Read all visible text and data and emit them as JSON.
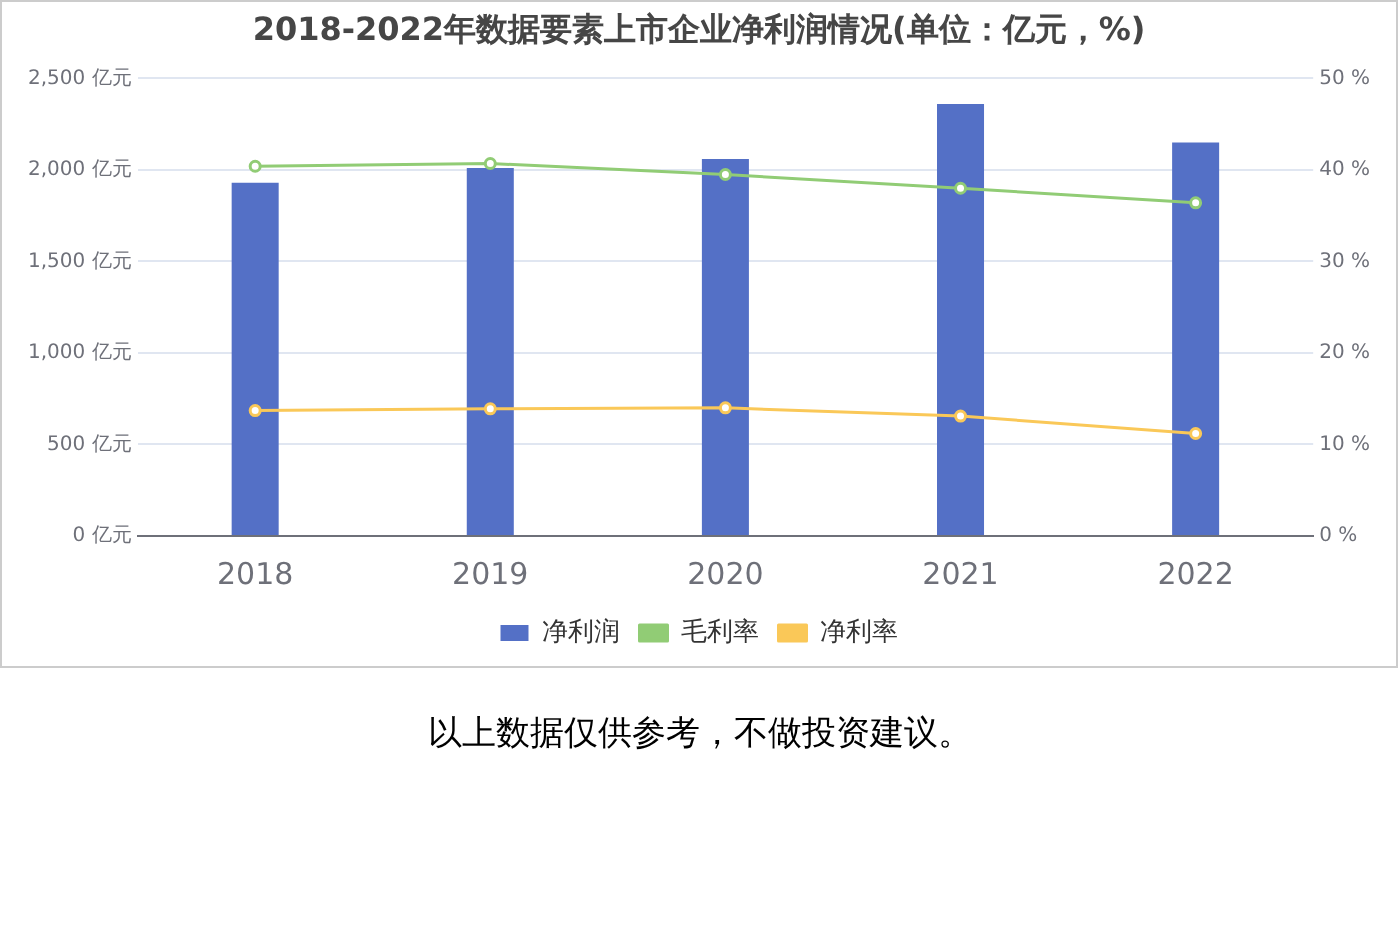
{
  "chart_data": {
    "type": "bar",
    "title": "2018-2022年数据要素上市企业净利润情况(单位：亿元，%)",
    "categories": [
      "2018",
      "2019",
      "2020",
      "2021",
      "2022"
    ],
    "series": [
      {
        "name": "净利润",
        "color": "#5470c6",
        "values": [
          1930,
          2010,
          2060,
          2360,
          2150
        ]
      },
      {
        "name": "毛利率",
        "type": "line",
        "axis": "y2",
        "color": "#91cc75",
        "values": [
          40.4,
          40.7,
          39.5,
          38.0,
          36.4
        ]
      },
      {
        "name": "净利率",
        "type": "line",
        "axis": "y2",
        "color": "#fac858",
        "values": [
          13.7,
          13.9,
          14.0,
          13.1,
          11.2
        ]
      }
    ],
    "ylim": [
      0,
      2500
    ],
    "yticks": [
      {
        "value": 0,
        "label": "0 亿元"
      },
      {
        "value": 500,
        "label": "500 亿元"
      },
      {
        "value": 1000,
        "label": "1,000 亿元"
      },
      {
        "value": 1500,
        "label": "1,500 亿元"
      },
      {
        "value": 2000,
        "label": "2,000 亿元"
      },
      {
        "value": 2500,
        "label": "2,500 亿元"
      }
    ],
    "y2lim": [
      0,
      50
    ],
    "y2ticks": [
      {
        "value": 0,
        "label": "0 %"
      },
      {
        "value": 10,
        "label": "10 %"
      },
      {
        "value": 20,
        "label": "20 %"
      },
      {
        "value": 30,
        "label": "30 %"
      },
      {
        "value": 40,
        "label": "40 %"
      },
      {
        "value": 50,
        "label": "50 %"
      }
    ],
    "grid": "y",
    "legend": "bottom",
    "marker": "circle",
    "line_style": "solid",
    "annotations": [
      "以上数据仅供参考，不做投资建议。"
    ]
  }
}
